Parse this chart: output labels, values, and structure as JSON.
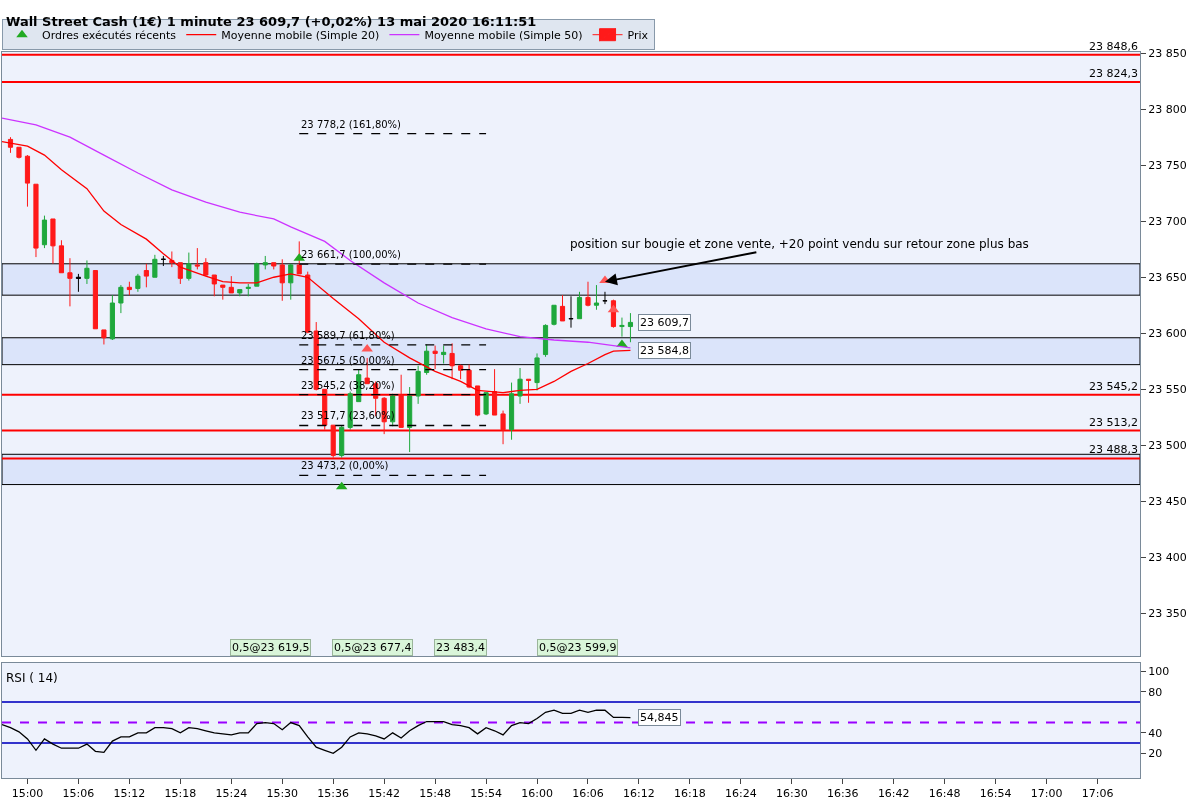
{
  "chart_data": [
    {
      "type": "candlestick",
      "title": "Wall Street Cash (1€) 1 minute 23 609,7 (+0,02%) 13 mai 2020 16:11:51",
      "legend": "top left",
      "tick_labels": "y",
      "xlim": [
        "2020-05-13T14:57",
        "2020-05-13T17:11"
      ],
      "ylim": [
        23312,
        23851
      ],
      "yticks": [
        {
          "value": 23350,
          "label": "23 350"
        },
        {
          "value": 23400,
          "label": "23 400"
        },
        {
          "value": 23450,
          "label": "23 450"
        },
        {
          "value": 23500,
          "label": "23 500"
        },
        {
          "value": 23550,
          "label": "23 550"
        },
        {
          "value": 23600,
          "label": "23 600"
        },
        {
          "value": 23650,
          "label": "23 650"
        },
        {
          "value": 23700,
          "label": "23 700"
        },
        {
          "value": 23750,
          "label": "23 750"
        },
        {
          "value": 23800,
          "label": "23 800"
        },
        {
          "value": 23850,
          "label": "23 850"
        }
      ],
      "bands": [
        {
          "axis": "y",
          "from": 23634,
          "to": 23662,
          "color": "#dbe4fa"
        },
        {
          "axis": "y",
          "from": 23572,
          "to": 23596,
          "color": "#dbe4fa"
        },
        {
          "axis": "y",
          "from": 23465,
          "to": 23492,
          "color": "#dbe4fa"
        }
      ],
      "ref_lines": [
        {
          "axis": "y",
          "value": 23848.6,
          "label": "23 848,6",
          "color": "#ff0000"
        },
        {
          "axis": "y",
          "value": 23824.3,
          "label": "23 824,3",
          "color": "#ff0000"
        },
        {
          "axis": "y",
          "value": 23545.2,
          "label": "23 545,2",
          "color": "#ff0000"
        },
        {
          "axis": "y",
          "value": 23513.2,
          "label": "23 513,2",
          "color": "#ff0000"
        },
        {
          "axis": "y",
          "value": 23488.3,
          "label": "23 488,3",
          "color": "#ff0000"
        }
      ],
      "series": [
        {
          "name": "Prix",
          "x": [
            "2020-05-13T14:58",
            "2020-05-13T14:59",
            "2020-05-13T15:00",
            "2020-05-13T15:01",
            "2020-05-13T15:02",
            "2020-05-13T15:03",
            "2020-05-13T15:04",
            "2020-05-13T15:05",
            "2020-05-13T15:06",
            "2020-05-13T15:07",
            "2020-05-13T15:08",
            "2020-05-13T15:09",
            "2020-05-13T15:10",
            "2020-05-13T15:11",
            "2020-05-13T15:12",
            "2020-05-13T15:13",
            "2020-05-13T15:14",
            "2020-05-13T15:15",
            "2020-05-13T15:16",
            "2020-05-13T15:17",
            "2020-05-13T15:18",
            "2020-05-13T15:19",
            "2020-05-13T15:20",
            "2020-05-13T15:21",
            "2020-05-13T15:22",
            "2020-05-13T15:23",
            "2020-05-13T15:24",
            "2020-05-13T15:25",
            "2020-05-13T15:26",
            "2020-05-13T15:27",
            "2020-05-13T15:28",
            "2020-05-13T15:29",
            "2020-05-13T15:30",
            "2020-05-13T15:31",
            "2020-05-13T15:32",
            "2020-05-13T15:33",
            "2020-05-13T15:34",
            "2020-05-13T15:35",
            "2020-05-13T15:36",
            "2020-05-13T15:37",
            "2020-05-13T15:38",
            "2020-05-13T15:39",
            "2020-05-13T15:40",
            "2020-05-13T15:41",
            "2020-05-13T15:42",
            "2020-05-13T15:43",
            "2020-05-13T15:44",
            "2020-05-13T15:45",
            "2020-05-13T15:46",
            "2020-05-13T15:47",
            "2020-05-13T15:48",
            "2020-05-13T15:49",
            "2020-05-13T15:50",
            "2020-05-13T15:51",
            "2020-05-13T15:52",
            "2020-05-13T15:53",
            "2020-05-13T15:54",
            "2020-05-13T15:55",
            "2020-05-13T15:56",
            "2020-05-13T15:57",
            "2020-05-13T15:58",
            "2020-05-13T15:59",
            "2020-05-13T16:00",
            "2020-05-13T16:01",
            "2020-05-13T16:02",
            "2020-05-13T16:03",
            "2020-05-13T16:04",
            "2020-05-13T16:05",
            "2020-05-13T16:06",
            "2020-05-13T16:07",
            "2020-05-13T16:08",
            "2020-05-13T16:09",
            "2020-05-13T16:10",
            "2020-05-13T16:11"
          ],
          "ohlc": [
            [
              23773,
              23775,
              23761,
              23766
            ],
            [
              23766,
              23766,
              23756,
              23757
            ],
            [
              23758,
              23759,
              23713,
              23734
            ],
            [
              23733,
              23733,
              23668,
              23676
            ],
            [
              23679,
              23705,
              23676,
              23701
            ],
            [
              23702,
              23702,
              23662,
              23678
            ],
            [
              23678,
              23683,
              23654,
              23654
            ],
            [
              23654,
              23667,
              23624,
              23649
            ],
            [
              23650,
              23653,
              23637,
              23649
            ],
            [
              23649,
              23665,
              23644,
              23658
            ],
            [
              23656,
              23656,
              23604,
              23604
            ],
            [
              23603,
              23603,
              23590,
              23596
            ],
            [
              23595,
              23634,
              23594,
              23627
            ],
            [
              23627,
              23643,
              23618,
              23641
            ],
            [
              23641,
              23646,
              23634,
              23639
            ],
            [
              23640,
              23653,
              23637,
              23651
            ],
            [
              23656,
              23662,
              23641,
              23651
            ],
            [
              23650,
              23670,
              23650,
              23666
            ],
            [
              23666,
              23669,
              23660,
              23666
            ],
            [
              23665,
              23673,
              23659,
              23663
            ],
            [
              23663,
              23663,
              23644,
              23649
            ],
            [
              23649,
              23672,
              23647,
              23662
            ],
            [
              23661,
              23676,
              23657,
              23660
            ],
            [
              23663,
              23667,
              23651,
              23652
            ],
            [
              23652,
              23652,
              23633,
              23644
            ],
            [
              23643,
              23643,
              23630,
              23641
            ],
            [
              23641,
              23651,
              23636,
              23636
            ],
            [
              23636,
              23639,
              23633,
              23639
            ],
            [
              23640,
              23644,
              23633,
              23641
            ],
            [
              23642,
              23663,
              23642,
              23662
            ],
            [
              23661,
              23669,
              23657,
              23663
            ],
            [
              23663,
              23663,
              23657,
              23660
            ],
            [
              23661,
              23666,
              23629,
              23645
            ],
            [
              23645,
              23662,
              23630,
              23661
            ],
            [
              23661,
              23682,
              23653,
              23653
            ],
            [
              23652,
              23655,
              23600,
              23601
            ],
            [
              23602,
              23610,
              23549,
              23550
            ],
            [
              23550,
              23550,
              23514,
              23518
            ],
            [
              23518,
              23518,
              23489,
              23491
            ],
            [
              23491,
              23518,
              23489,
              23516
            ],
            [
              23516,
              23548,
              23514,
              23546
            ],
            [
              23539,
              23568,
              23539,
              23563
            ],
            [
              23560,
              23578,
              23555,
              23555
            ],
            [
              23555,
              23557,
              23526,
              23542
            ],
            [
              23542,
              23543,
              23510,
              23521
            ],
            [
              23521,
              23546,
              23517,
              23544
            ],
            [
              23545,
              23563,
              23516,
              23516
            ],
            [
              23516,
              23552,
              23494,
              23544
            ],
            [
              23544,
              23571,
              23537,
              23566
            ],
            [
              23565,
              23590,
              23563,
              23584
            ],
            [
              23584,
              23589,
              23568,
              23582
            ],
            [
              23581,
              23589,
              23573,
              23583
            ],
            [
              23582,
              23591,
              23559,
              23571
            ],
            [
              23571,
              23572,
              23559,
              23567
            ],
            [
              23567,
              23572,
              23551,
              23552
            ],
            [
              23553,
              23553,
              23526,
              23527
            ],
            [
              23528,
              23547,
              23527,
              23547
            ],
            [
              23548,
              23568,
              23527,
              23527
            ],
            [
              23528,
              23531,
              23501,
              23514
            ],
            [
              23514,
              23556,
              23505,
              23546
            ],
            [
              23544,
              23569,
              23537,
              23559
            ],
            [
              23559,
              23559,
              23538,
              23558
            ],
            [
              23556,
              23582,
              23549,
              23578
            ],
            [
              23581,
              23608,
              23579,
              23607
            ],
            [
              23608,
              23625,
              23607,
              23625
            ],
            [
              23624,
              23634,
              23611,
              23611
            ],
            [
              23613,
              23633,
              23605,
              23613
            ],
            [
              23613,
              23637,
              23613,
              23632
            ],
            [
              23632,
              23646,
              23624,
              23625
            ],
            [
              23625,
              23643,
              23621,
              23627
            ],
            [
              23629,
              23637,
              23626,
              23629
            ],
            [
              23629,
              23630,
              23605,
              23606
            ],
            [
              23606,
              23614,
              23597,
              23607
            ],
            [
              23606,
              23618,
              23592,
              23609.7
            ]
          ],
          "colors": [
            "#ff1a1a",
            "#ff1a1a",
            "#ff1a1a",
            "#ff1a1a",
            "#1fa83c",
            "#ff1a1a",
            "#ff1a1a",
            "#ff1a1a",
            "#000000",
            "#1fa83c",
            "#ff1a1a",
            "#ff1a1a",
            "#1fa83c",
            "#1fa83c",
            "#ff1a1a",
            "#1fa83c",
            "#ff1a1a",
            "#1fa83c",
            "#000000",
            "#ff1a1a",
            "#ff1a1a",
            "#1fa83c",
            "#ff1a1a",
            "#ff1a1a",
            "#ff1a1a",
            "#ff1a1a",
            "#ff1a1a",
            "#1fa83c",
            "#1fa83c",
            "#1fa83c",
            "#1fa83c",
            "#ff1a1a",
            "#ff1a1a",
            "#1fa83c",
            "#ff1a1a",
            "#ff1a1a",
            "#ff1a1a",
            "#ff1a1a",
            "#ff1a1a",
            "#1fa83c",
            "#1fa83c",
            "#1fa83c",
            "#ff1a1a",
            "#ff1a1a",
            "#ff1a1a",
            "#1fa83c",
            "#ff1a1a",
            "#1fa83c",
            "#1fa83c",
            "#1fa83c",
            "#ff1a1a",
            "#1fa83c",
            "#ff1a1a",
            "#ff1a1a",
            "#ff1a1a",
            "#ff1a1a",
            "#1fa83c",
            "#ff1a1a",
            "#ff1a1a",
            "#1fa83c",
            "#1fa83c",
            "#ff1a1a",
            "#1fa83c",
            "#1fa83c",
            "#1fa83c",
            "#ff1a1a",
            "#000000",
            "#1fa83c",
            "#ff1a1a",
            "#1fa83c",
            "#000000",
            "#ff1a1a",
            "#1fa83c",
            "#1fa83c"
          ]
        },
        {
          "name": "Ordres exécutés récents",
          "type": "scatter",
          "marker": "triangle",
          "x": [
            "2020-05-13T15:32",
            "2020-05-13T15:37",
            "2020-05-13T15:40",
            "2020-05-13T16:08",
            "2020-05-13T16:09",
            "2020-05-13T16:10"
          ],
          "values": [
            23667,
            23463,
            23586,
            23647,
            23621,
            23590
          ],
          "colors": [
            "#22aa22",
            "#22aa22",
            "#ff5555",
            "#ff5555",
            "#ff5555",
            "#22aa22"
          ]
        },
        {
          "name": "Moyenne mobile (Simple 20)",
          "type": "line",
          "color": "#ff0000",
          "x": [
            "2020-05-13T14:57",
            "2020-05-13T15:00",
            "2020-05-13T15:02",
            "2020-05-13T15:04",
            "2020-05-13T15:07",
            "2020-05-13T15:09",
            "2020-05-13T15:11",
            "2020-05-13T15:14",
            "2020-05-13T15:16",
            "2020-05-13T15:18",
            "2020-05-13T15:21",
            "2020-05-13T15:23",
            "2020-05-13T15:25",
            "2020-05-13T15:27",
            "2020-05-13T15:29",
            "2020-05-13T15:31",
            "2020-05-13T15:33",
            "2020-05-13T15:36",
            "2020-05-13T15:39",
            "2020-05-13T15:42",
            "2020-05-13T15:45",
            "2020-05-13T15:48",
            "2020-05-13T15:51",
            "2020-05-13T15:53",
            "2020-05-13T15:56",
            "2020-05-13T15:58",
            "2020-05-13T16:00",
            "2020-05-13T16:02",
            "2020-05-13T16:04",
            "2020-05-13T16:06",
            "2020-05-13T16:08",
            "2020-05-13T16:09",
            "2020-05-13T16:11"
          ],
          "values": [
            23771,
            23767,
            23759,
            23746,
            23729,
            23709,
            23697,
            23684,
            23671,
            23659,
            23651,
            23646,
            23645,
            23645,
            23650,
            23653,
            23650,
            23631,
            23613,
            23592,
            23578,
            23566,
            23557,
            23549,
            23547,
            23549,
            23550,
            23557,
            23566,
            23573,
            23581,
            23584,
            23584.8
          ]
        },
        {
          "name": "Moyenne mobile (Simple 50)",
          "type": "line",
          "color": "#cc33ff",
          "x": [
            "2020-05-13T14:57",
            "2020-05-13T15:01",
            "2020-05-13T15:05",
            "2020-05-13T15:09",
            "2020-05-13T15:13",
            "2020-05-13T15:17",
            "2020-05-13T15:21",
            "2020-05-13T15:25",
            "2020-05-13T15:29",
            "2020-05-13T15:31",
            "2020-05-13T15:35",
            "2020-05-13T15:38",
            "2020-05-13T15:42",
            "2020-05-13T15:46",
            "2020-05-13T15:50",
            "2020-05-13T15:54",
            "2020-05-13T15:58",
            "2020-05-13T16:02",
            "2020-05-13T16:06",
            "2020-05-13T16:09",
            "2020-05-13T16:11"
          ],
          "values": [
            23792,
            23786,
            23775,
            23759,
            23743,
            23728,
            23717,
            23708,
            23702,
            23695,
            23682,
            23665,
            23645,
            23627,
            23614,
            23604,
            23597,
            23594,
            23592,
            23589,
            23587
          ]
        },
        {
          "type": "line",
          "color": "#000000",
          "line_style": "dashed",
          "x": [
            "2020-05-13T15:32",
            "2020-05-13T15:54"
          ],
          "values": [
            23778.2,
            23778.2
          ]
        },
        {
          "type": "line",
          "color": "#000000",
          "line_style": "dashed",
          "x": [
            "2020-05-13T15:32",
            "2020-05-13T15:54"
          ],
          "values": [
            23661.7,
            23661.7
          ]
        },
        {
          "type": "line",
          "color": "#000000",
          "line_style": "dashed",
          "x": [
            "2020-05-13T15:32",
            "2020-05-13T15:54"
          ],
          "values": [
            23589.7,
            23589.7
          ]
        },
        {
          "type": "line",
          "color": "#000000",
          "line_style": "dashed",
          "x": [
            "2020-05-13T15:32",
            "2020-05-13T15:54"
          ],
          "values": [
            23567.5,
            23567.5
          ]
        },
        {
          "type": "line",
          "color": "#000000",
          "line_style": "dashed",
          "x": [
            "2020-05-13T15:32",
            "2020-05-13T15:54"
          ],
          "values": [
            23545.2,
            23545.2
          ]
        },
        {
          "type": "line",
          "color": "#000000",
          "line_style": "dashed",
          "x": [
            "2020-05-13T15:32",
            "2020-05-13T15:54"
          ],
          "values": [
            23517.7,
            23517.7
          ]
        },
        {
          "type": "line",
          "color": "#000000",
          "line_style": "dashed",
          "x": [
            "2020-05-13T15:32",
            "2020-05-13T15:54"
          ],
          "values": [
            23473.2,
            23473.2
          ]
        }
      ],
      "annotations": [
        {
          "text": "23 778,2 (161,80%)",
          "x": "2020-05-13T15:32",
          "y": 23778.2
        },
        {
          "text": "23 661,7 (100,00%)",
          "x": "2020-05-13T15:32",
          "y": 23661.7
        },
        {
          "text": "23 589,7 (61,80%)",
          "x": "2020-05-13T15:32",
          "y": 23589.7
        },
        {
          "text": "23 567,5 (50,00%)",
          "x": "2020-05-13T15:32",
          "y": 23567.5
        },
        {
          "text": "23 545,2 (38,20%)",
          "x": "2020-05-13T15:32",
          "y": 23545.2
        },
        {
          "text": "23 517,7 (23,60%)",
          "x": "2020-05-13T15:32",
          "y": 23517.7
        },
        {
          "text": "23 473,2 (0,00%)",
          "x": "2020-05-13T15:32",
          "y": 23473.2
        },
        {
          "text": "position sur bougie et zone vente, +20 point vendu sur retour zone plus bas",
          "x": "2020-05-13T16:08",
          "y": 23646
        },
        "0,5@23 619,5",
        "0,5@23 677,4",
        "23 483,4",
        "0,5@23 599,9",
        {
          "text": "23 609,7",
          "x": "2020-05-13T16:11",
          "y": 23609.7
        },
        {
          "text": "23 584,8",
          "x": "2020-05-13T16:11",
          "y": 23584.8
        }
      ]
    },
    {
      "type": "line",
      "title": "RSI ( 14)",
      "xlim": [
        "2020-05-13T14:57",
        "2020-05-13T17:11"
      ],
      "xticks": [
        {
          "value": "2020-05-13T15:00",
          "label": "15:00"
        },
        {
          "value": "2020-05-13T15:06",
          "label": "15:06"
        },
        {
          "value": "2020-05-13T15:12",
          "label": "15:12"
        },
        {
          "value": "2020-05-13T15:18",
          "label": "15:18"
        },
        {
          "value": "2020-05-13T15:24",
          "label": "15:24"
        },
        {
          "value": "2020-05-13T15:30",
          "label": "15:30"
        },
        {
          "value": "2020-05-13T15:36",
          "label": "15:36"
        },
        {
          "value": "2020-05-13T15:42",
          "label": "15:42"
        },
        {
          "value": "2020-05-13T15:48",
          "label": "15:48"
        },
        {
          "value": "2020-05-13T15:54",
          "label": "15:54"
        },
        {
          "value": "2020-05-13T16:00",
          "label": "16:00"
        },
        {
          "value": "2020-05-13T16:06",
          "label": "16:06"
        },
        {
          "value": "2020-05-13T16:12",
          "label": "16:12"
        },
        {
          "value": "2020-05-13T16:18",
          "label": "16:18"
        },
        {
          "value": "2020-05-13T16:24",
          "label": "16:24"
        },
        {
          "value": "2020-05-13T16:30",
          "label": "16:30"
        },
        {
          "value": "2020-05-13T16:36",
          "label": "16:36"
        },
        {
          "value": "2020-05-13T16:42",
          "label": "16:42"
        },
        {
          "value": "2020-05-13T16:48",
          "label": "16:48"
        },
        {
          "value": "2020-05-13T16:54",
          "label": "16:54"
        },
        {
          "value": "2020-05-13T17:00",
          "label": "17:00"
        },
        {
          "value": "2020-05-13T17:06",
          "label": "17:06"
        }
      ],
      "ylim": [
        -4,
        108
      ],
      "yticks": [
        20,
        40,
        80,
        100
      ],
      "ref_lines": [
        {
          "axis": "y",
          "value": 70,
          "color": "#3333cc"
        },
        {
          "axis": "y",
          "value": 30,
          "color": "#3333cc"
        },
        {
          "axis": "y",
          "value": 50,
          "color": "#9900ff",
          "line_style": "dashed"
        }
      ],
      "annotations": [
        {
          "text": "54,845",
          "x": "2020-05-13T16:11",
          "y": 54.845
        }
      ],
      "x": [
        "2020-05-13T14:57",
        "2020-05-13T14:58",
        "2020-05-13T14:59",
        "2020-05-13T15:00",
        "2020-05-13T15:01",
        "2020-05-13T15:02",
        "2020-05-13T15:03",
        "2020-05-13T15:04",
        "2020-05-13T15:05",
        "2020-05-13T15:06",
        "2020-05-13T15:07",
        "2020-05-13T15:08",
        "2020-05-13T15:09",
        "2020-05-13T15:10",
        "2020-05-13T15:11",
        "2020-05-13T15:12",
        "2020-05-13T15:13",
        "2020-05-13T15:14",
        "2020-05-13T15:15",
        "2020-05-13T15:16",
        "2020-05-13T15:17",
        "2020-05-13T15:18",
        "2020-05-13T15:19",
        "2020-05-13T15:20",
        "2020-05-13T15:21",
        "2020-05-13T15:22",
        "2020-05-13T15:23",
        "2020-05-13T15:24",
        "2020-05-13T15:25",
        "2020-05-13T15:26",
        "2020-05-13T15:27",
        "2020-05-13T15:28",
        "2020-05-13T15:29",
        "2020-05-13T15:30",
        "2020-05-13T15:31",
        "2020-05-13T15:32",
        "2020-05-13T15:33",
        "2020-05-13T15:34",
        "2020-05-13T15:35",
        "2020-05-13T15:36",
        "2020-05-13T15:37",
        "2020-05-13T15:38",
        "2020-05-13T15:39",
        "2020-05-13T15:40",
        "2020-05-13T15:41",
        "2020-05-13T15:42",
        "2020-05-13T15:43",
        "2020-05-13T15:44",
        "2020-05-13T15:45",
        "2020-05-13T15:46",
        "2020-05-13T15:47",
        "2020-05-13T15:48",
        "2020-05-13T15:49",
        "2020-05-13T15:50",
        "2020-05-13T15:51",
        "2020-05-13T15:52",
        "2020-05-13T15:53",
        "2020-05-13T15:54",
        "2020-05-13T15:55",
        "2020-05-13T15:56",
        "2020-05-13T15:57",
        "2020-05-13T15:58",
        "2020-05-13T15:59",
        "2020-05-13T16:00",
        "2020-05-13T16:01",
        "2020-05-13T16:02",
        "2020-05-13T16:03",
        "2020-05-13T16:04",
        "2020-05-13T16:05",
        "2020-05-13T16:06",
        "2020-05-13T16:07",
        "2020-05-13T16:08",
        "2020-05-13T16:09",
        "2020-05-13T16:10",
        "2020-05-13T16:11"
      ],
      "series": [
        {
          "color": "#000000",
          "values": [
            48,
            45,
            41,
            34,
            23,
            34,
            29,
            25,
            25,
            25,
            29,
            22,
            21,
            32,
            36,
            36,
            40,
            40,
            45,
            45,
            44,
            40,
            45,
            44,
            42,
            40,
            39,
            38,
            40,
            40,
            49,
            50,
            49,
            43,
            50,
            47,
            36,
            26,
            23,
            20,
            26,
            36,
            40,
            39,
            37,
            34,
            40,
            35,
            42,
            47,
            51,
            51,
            51,
            48,
            47,
            45,
            39,
            45,
            42,
            38,
            47,
            50,
            49,
            54,
            60,
            62,
            59,
            59,
            62,
            60,
            62,
            62,
            55,
            55,
            54.845
          ]
        }
      ]
    }
  ]
}
